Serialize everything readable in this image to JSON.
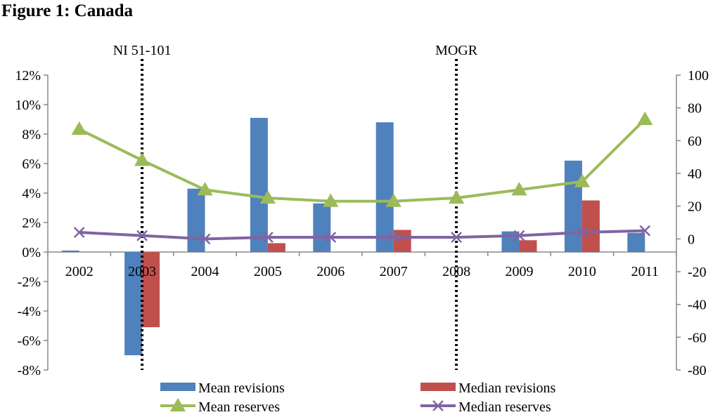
{
  "figure_title": "Figure 1: Canada",
  "chart_data": {
    "type": "bar",
    "categories": [
      "2002",
      "2003",
      "2004",
      "2005",
      "2006",
      "2007",
      "2008",
      "2009",
      "2010",
      "2011"
    ],
    "bar_series": [
      {
        "name": "Mean revisions",
        "color": "#4f81bd",
        "values": [
          0.1,
          -7.0,
          4.3,
          9.1,
          3.3,
          8.8,
          0.0,
          1.4,
          6.2,
          1.3
        ]
      },
      {
        "name": "Median revisions",
        "color": "#c0504d",
        "values": [
          0.0,
          -5.1,
          0.0,
          0.6,
          0.0,
          1.5,
          0.0,
          0.8,
          3.5,
          0.0
        ]
      }
    ],
    "line_series": [
      {
        "name": "Mean reserves",
        "color": "#9bbb59",
        "marker": "triangle",
        "values": [
          67,
          48,
          30,
          25,
          23,
          23,
          25,
          30,
          35,
          73
        ]
      },
      {
        "name": "Median reserves",
        "color": "#8064a2",
        "marker": "x",
        "values": [
          4,
          2,
          0,
          1,
          1,
          1,
          1,
          2,
          4,
          5
        ]
      }
    ],
    "y_left": {
      "min": -8,
      "max": 12,
      "step": 2,
      "suffix": "%"
    },
    "y_right": {
      "min": -80,
      "max": 100,
      "step": 20
    },
    "y_right_tick_labels": [
      "100",
      "80",
      "60",
      "40",
      "20",
      "0",
      "-20",
      "-40",
      "-60",
      "-80"
    ],
    "annotations": [
      {
        "label": "NI 51-101",
        "category_index": 1
      },
      {
        "label": "MOGR",
        "category_index": 6
      }
    ],
    "legend": {
      "placement": "bottom",
      "entries": [
        "Mean revisions",
        "Median revisions",
        "Mean reserves",
        "Median reserves"
      ]
    },
    "grid": false
  }
}
